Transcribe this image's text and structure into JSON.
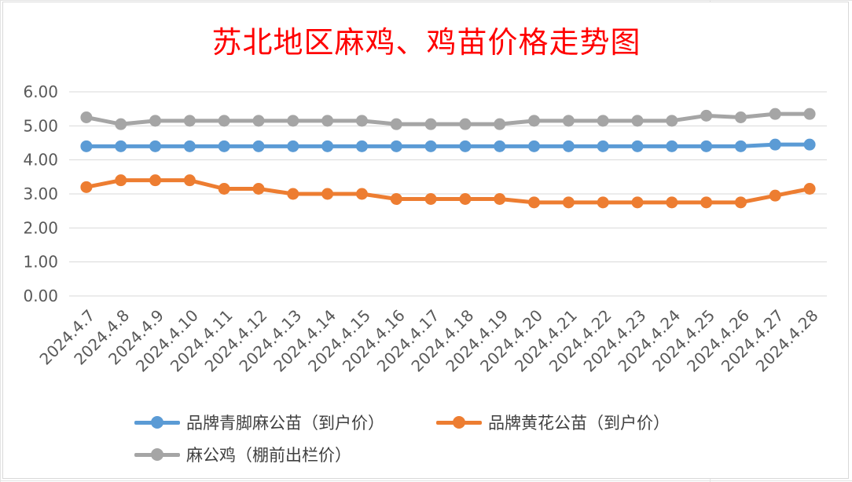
{
  "chart_data": {
    "type": "line",
    "title": "苏北地区麻鸡、鸡苗价格走势图",
    "xlabel": "",
    "ylabel": "",
    "ylim": [
      0,
      6
    ],
    "yticks": [
      "0.00",
      "1.00",
      "2.00",
      "3.00",
      "4.00",
      "5.00",
      "6.00"
    ],
    "grid": true,
    "legend_position": "bottom",
    "categories": [
      "2024.4.7",
      "2024.4.8",
      "2024.4.9",
      "2024.4.10",
      "2024.4.11",
      "2024.4.12",
      "2024.4.13",
      "2024.4.14",
      "2024.4.15",
      "2024.4.16",
      "2024.4.17",
      "2024.4.18",
      "2024.4.19",
      "2024.4.20",
      "2024.4.21",
      "2024.4.22",
      "2024.4.23",
      "2024.4.24",
      "2024.4.25",
      "2024.4.26",
      "2024.4.27",
      "2024.4.28"
    ],
    "series": [
      {
        "name": "品牌青脚麻公苗（到户价）",
        "color": "#5b9bd5",
        "values": [
          4.4,
          4.4,
          4.4,
          4.4,
          4.4,
          4.4,
          4.4,
          4.4,
          4.4,
          4.4,
          4.4,
          4.4,
          4.4,
          4.4,
          4.4,
          4.4,
          4.4,
          4.4,
          4.4,
          4.4,
          4.45,
          4.45
        ]
      },
      {
        "name": "品牌黄花公苗（到户价）",
        "color": "#ed7d31",
        "values": [
          3.2,
          3.4,
          3.4,
          3.4,
          3.15,
          3.15,
          3.0,
          3.0,
          3.0,
          2.85,
          2.85,
          2.85,
          2.85,
          2.75,
          2.75,
          2.75,
          2.75,
          2.75,
          2.75,
          2.75,
          2.95,
          3.15
        ]
      },
      {
        "name": "麻公鸡（棚前出栏价）",
        "color": "#a5a5a5",
        "values": [
          5.25,
          5.05,
          5.15,
          5.15,
          5.15,
          5.15,
          5.15,
          5.15,
          5.15,
          5.05,
          5.05,
          5.05,
          5.05,
          5.15,
          5.15,
          5.15,
          5.15,
          5.15,
          5.3,
          5.25,
          5.35,
          5.35
        ]
      }
    ]
  }
}
